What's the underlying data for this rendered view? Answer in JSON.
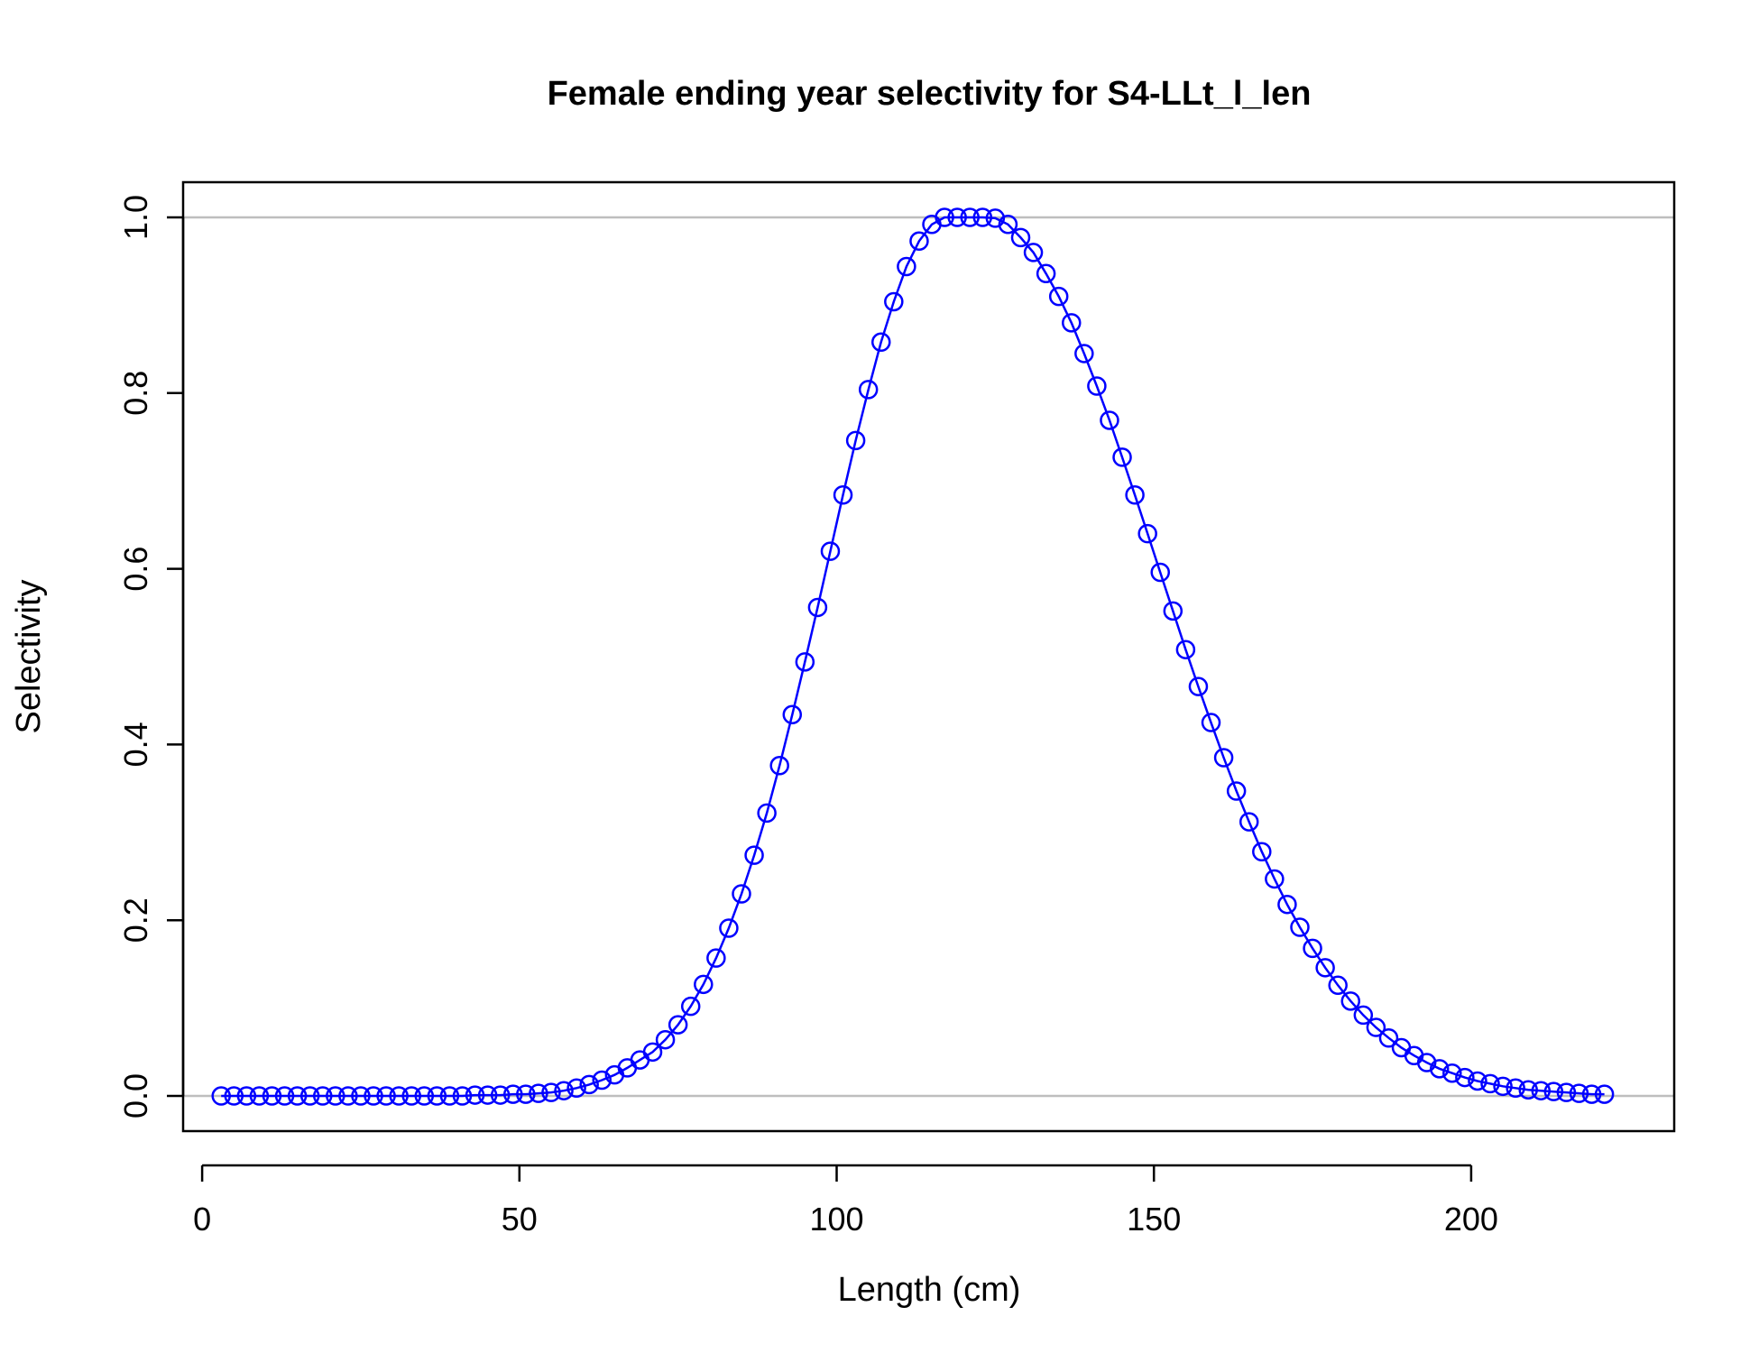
{
  "chart_data": {
    "type": "line",
    "title": "Female ending year selectivity for S4-LLt_l_len",
    "xlabel": "Length (cm)",
    "ylabel": "Selectivity",
    "xlim": [
      -3,
      232
    ],
    "ylim": [
      -0.04,
      1.04
    ],
    "x_ticks": [
      0,
      50,
      100,
      150,
      200
    ],
    "y_ticks": [
      0.0,
      0.2,
      0.4,
      0.6,
      0.8,
      1.0
    ],
    "x_tick_labels": [
      "0",
      "50",
      "100",
      "150",
      "200"
    ],
    "y_tick_labels": [
      "0.0",
      "0.2",
      "0.4",
      "0.6",
      "0.8",
      "1.0"
    ],
    "reference_lines_y": [
      0,
      1
    ],
    "grid": false,
    "legend": "none",
    "series": [
      {
        "color": "#0000ff",
        "marker": "open-circle",
        "x": [
          3,
          5,
          7,
          9,
          11,
          13,
          15,
          17,
          19,
          21,
          23,
          25,
          27,
          29,
          31,
          33,
          35,
          37,
          39,
          41,
          43,
          45,
          47,
          49,
          51,
          53,
          55,
          57,
          59,
          61,
          63,
          65,
          67,
          69,
          71,
          73,
          75,
          77,
          79,
          81,
          83,
          85,
          87,
          89,
          91,
          93,
          95,
          97,
          99,
          101,
          103,
          105,
          107,
          109,
          111,
          113,
          115,
          117,
          119,
          121,
          123,
          125,
          127,
          129,
          131,
          133,
          135,
          137,
          139,
          141,
          143,
          145,
          147,
          149,
          151,
          153,
          155,
          157,
          159,
          161,
          163,
          165,
          167,
          169,
          171,
          173,
          175,
          177,
          179,
          181,
          183,
          185,
          187,
          189,
          191,
          193,
          195,
          197,
          199,
          201,
          203,
          205,
          207,
          209,
          211,
          213,
          215,
          217,
          219,
          221
        ],
        "y": [
          0.0,
          0.0,
          0.0,
          0.0,
          0.0,
          0.0,
          0.0,
          0.0,
          0.0,
          0.0,
          0.0,
          0.0,
          0.0,
          0.0,
          0.0,
          0.0,
          0.0,
          0.0,
          0.0,
          0.0,
          0.001,
          0.001,
          0.001,
          0.002,
          0.002,
          0.003,
          0.004,
          0.006,
          0.009,
          0.013,
          0.018,
          0.024,
          0.032,
          0.041,
          0.05,
          0.064,
          0.081,
          0.102,
          0.127,
          0.157,
          0.191,
          0.23,
          0.274,
          0.322,
          0.376,
          0.434,
          0.494,
          0.556,
          0.62,
          0.684,
          0.746,
          0.804,
          0.858,
          0.904,
          0.944,
          0.973,
          0.992,
          1.0,
          1.0,
          1.0,
          1.0,
          0.999,
          0.992,
          0.977,
          0.96,
          0.936,
          0.91,
          0.88,
          0.845,
          0.808,
          0.769,
          0.727,
          0.684,
          0.64,
          0.596,
          0.552,
          0.508,
          0.466,
          0.425,
          0.385,
          0.347,
          0.312,
          0.278,
          0.247,
          0.218,
          0.192,
          0.168,
          0.146,
          0.126,
          0.108,
          0.092,
          0.078,
          0.066,
          0.055,
          0.046,
          0.038,
          0.031,
          0.026,
          0.021,
          0.017,
          0.014,
          0.011,
          0.009,
          0.007,
          0.006,
          0.005,
          0.004,
          0.003,
          0.002,
          0.002
        ]
      }
    ]
  }
}
